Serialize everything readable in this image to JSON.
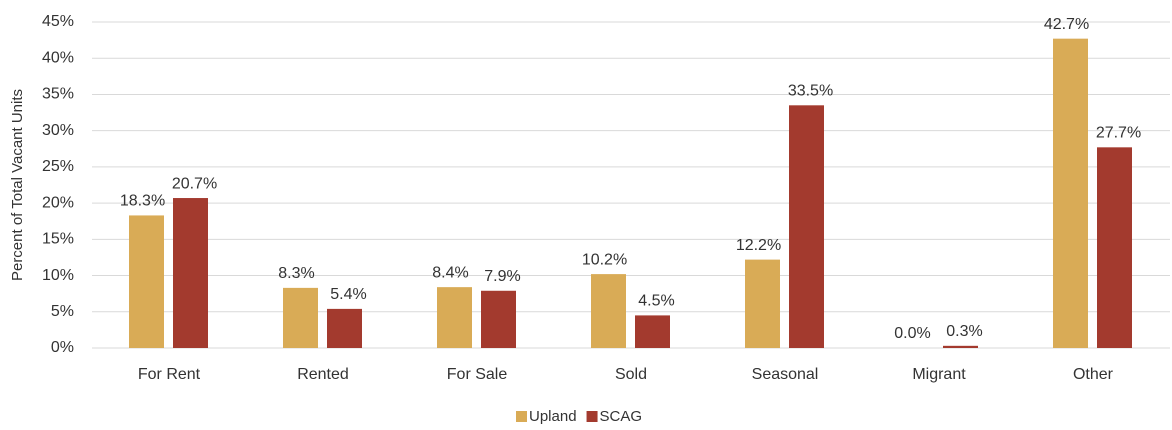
{
  "chart_data": {
    "type": "bar",
    "y_label": "Percent of Total Vacant Units",
    "categories": [
      "For Rent",
      "Rented",
      "For Sale",
      "Sold",
      "Seasonal",
      "Migrant",
      "Other"
    ],
    "series": [
      {
        "name": "Upland",
        "color": "#d9ab56",
        "values": [
          18.3,
          8.3,
          8.4,
          10.2,
          12.2,
          0.0,
          42.7
        ],
        "value_labels": [
          "18.3%",
          "8.3%",
          "8.4%",
          "10.2%",
          "12.2%",
          "0.0%",
          "42.7%"
        ]
      },
      {
        "name": "SCAG",
        "color": "#a33a2e",
        "values": [
          20.7,
          5.4,
          7.9,
          4.5,
          33.5,
          0.3,
          27.7
        ],
        "value_labels": [
          "20.7%",
          "5.4%",
          "7.9%",
          "4.5%",
          "33.5%",
          "0.3%",
          "27.7%"
        ]
      }
    ],
    "ylim": [
      0,
      45
    ],
    "yticks": [
      {
        "value": 0,
        "label": "0%"
      },
      {
        "value": 5,
        "label": "5%"
      },
      {
        "value": 10,
        "label": "10%"
      },
      {
        "value": 15,
        "label": "15%"
      },
      {
        "value": 20,
        "label": "20%"
      },
      {
        "value": 25,
        "label": "25%"
      },
      {
        "value": 30,
        "label": "30%"
      },
      {
        "value": 35,
        "label": "35%"
      },
      {
        "value": 40,
        "label": "40%"
      },
      {
        "value": 45,
        "label": "45%"
      }
    ],
    "grid": true,
    "legend": "bottom"
  }
}
